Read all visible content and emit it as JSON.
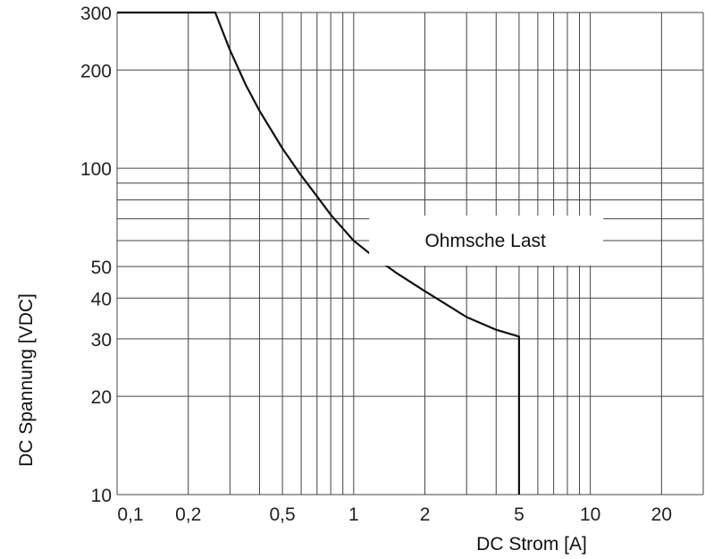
{
  "chart_data": {
    "type": "line",
    "xlabel": "DC Strom [A]",
    "ylabel": "DC Spannung [VDC]",
    "x_scale": "log",
    "y_scale": "log",
    "xlim": [
      0.1,
      30
    ],
    "ylim": [
      10,
      300
    ],
    "grid": true,
    "x_ticks": [
      {
        "value": 0.1,
        "label": "0,1"
      },
      {
        "value": 0.2,
        "label": "0,2"
      },
      {
        "value": 0.5,
        "label": "0,5"
      },
      {
        "value": 1,
        "label": "1"
      },
      {
        "value": 2,
        "label": "2"
      },
      {
        "value": 5,
        "label": "5"
      },
      {
        "value": 10,
        "label": "10"
      },
      {
        "value": 20,
        "label": "20"
      }
    ],
    "y_ticks": [
      {
        "value": 10,
        "label": "10"
      },
      {
        "value": 20,
        "label": "20"
      },
      {
        "value": 30,
        "label": "30"
      },
      {
        "value": 40,
        "label": "40"
      },
      {
        "value": 50,
        "label": "50"
      },
      {
        "value": 100,
        "label": "100"
      },
      {
        "value": 200,
        "label": "200"
      },
      {
        "value": 300,
        "label": "300"
      }
    ],
    "x_gridlines": [
      0.1,
      0.2,
      0.3,
      0.4,
      0.5,
      0.6,
      0.7,
      0.8,
      0.9,
      1,
      2,
      3,
      4,
      5,
      6,
      7,
      8,
      9,
      10,
      20,
      30
    ],
    "y_gridlines": [
      10,
      20,
      30,
      40,
      50,
      60,
      70,
      80,
      90,
      100,
      200,
      300
    ],
    "series": [
      {
        "x": [
          0.1,
          0.26,
          0.3,
          0.35,
          0.4,
          0.5,
          0.6,
          0.7,
          0.8,
          1.0,
          1.2,
          1.5,
          2.0,
          2.5,
          3.0,
          4.0,
          5.0,
          5.0
        ],
        "y": [
          300,
          300,
          230,
          180,
          150,
          115,
          95,
          82,
          72,
          60,
          54,
          48,
          42,
          38,
          35,
          32,
          30.5,
          10
        ]
      }
    ],
    "annotations": [
      {
        "text": "Ohmsche Last",
        "x": 3.6,
        "y": 60
      }
    ]
  }
}
